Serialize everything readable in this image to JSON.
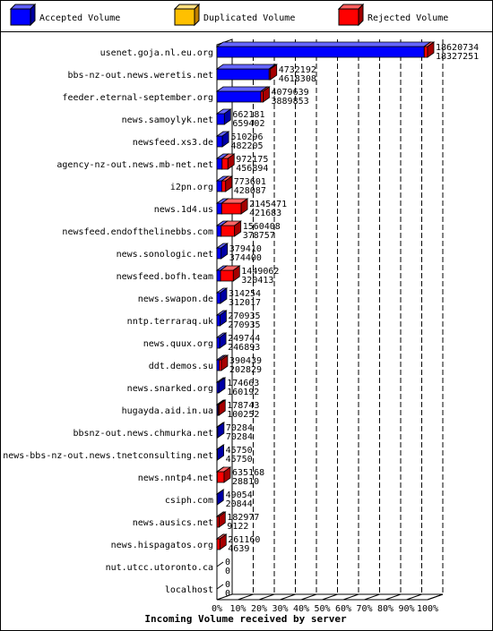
{
  "legend": [
    {
      "name": "Accepted Volume",
      "color": "#0000ff"
    },
    {
      "name": "Duplicated Volume",
      "color": "#ffc000"
    },
    {
      "name": "Rejected Volume",
      "color": "#ff0000"
    }
  ],
  "chart_data": {
    "type": "bar",
    "orientation": "horizontal",
    "stacked": true,
    "three_d": true,
    "xlabel": "Incoming Volume received by server",
    "ylabel": "",
    "xlim": [
      0,
      100
    ],
    "x_unit": "%",
    "xticks": [
      "0%",
      "10%",
      "20%",
      "30%",
      "40%",
      "50%",
      "60%",
      "70%",
      "80%",
      "90%",
      "100%"
    ],
    "grid": "dashed vertical",
    "legend_position": "top",
    "series": [
      {
        "name": "Accepted Volume",
        "color": "#0000ff"
      },
      {
        "name": "Duplicated Volume",
        "color": "#ffc000"
      },
      {
        "name": "Rejected Volume",
        "color": "#ff0000"
      }
    ],
    "categories": [
      "usenet.goja.nl.eu.org",
      "bbs-nz-out.news.weretis.net",
      "feeder.eternal-september.org",
      "news.samoylyk.net",
      "newsfeed.xs3.de",
      "agency-nz-out.news.mb-net.net",
      "i2pn.org",
      "news.1d4.us",
      "newsfeed.endofthelinebbs.com",
      "news.sonologic.net",
      "newsfeed.bofh.team",
      "news.swapon.de",
      "nntp.terraraq.uk",
      "news.quux.org",
      "ddt.demos.su",
      "news.snarked.org",
      "hugayda.aid.in.ua",
      "bbsnz-out.news.chmurka.net",
      "news-bbs-nz-out.news.tnetconsulting.net",
      "news.nntp4.net",
      "csiph.com",
      "news.ausics.net",
      "news.hispagatos.org",
      "nut.utcc.utoronto.ca",
      "localhost"
    ],
    "incoming": [
      18620734,
      4732192,
      4079639,
      662181,
      510296,
      972175,
      773601,
      2145471,
      1560408,
      379410,
      1449062,
      314254,
      270935,
      249744,
      390439,
      174663,
      178743,
      70284,
      45750,
      635168,
      49054,
      182977,
      261160,
      0,
      0
    ],
    "accepted": [
      18327251,
      4618308,
      3889853,
      659402,
      482205,
      456894,
      428087,
      421683,
      378757,
      374400,
      320413,
      312017,
      270935,
      246893,
      202829,
      160192,
      100252,
      70284,
      45750,
      28810,
      20844,
      9122,
      4639,
      0,
      0
    ]
  }
}
